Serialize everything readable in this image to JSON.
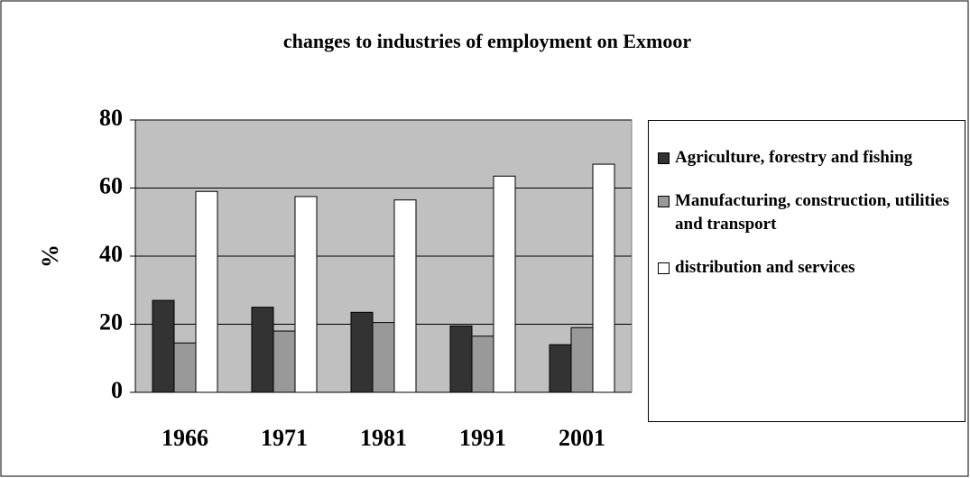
{
  "chart_data": {
    "type": "bar",
    "title": "changes to industries of employment on Exmoor",
    "y_label": "%",
    "categories": [
      "1966",
      "1971",
      "1981",
      "1991",
      "2001"
    ],
    "series": [
      {
        "name": "Agriculture, forestry and fishing",
        "color": "#333333",
        "values": [
          27,
          25,
          23.5,
          19.5,
          14
        ]
      },
      {
        "name": "Manufacturing, construction, utilities and transport",
        "color": "#999999",
        "values": [
          14.5,
          18,
          20.5,
          16.5,
          19
        ]
      },
      {
        "name": "distribution and services",
        "color": "#ffffff",
        "values": [
          59,
          57.5,
          56.5,
          63.5,
          67
        ]
      }
    ],
    "ylim": [
      0,
      80
    ],
    "yticks": [
      0,
      20,
      40,
      60,
      80
    ],
    "grid": true,
    "legend": "right"
  }
}
